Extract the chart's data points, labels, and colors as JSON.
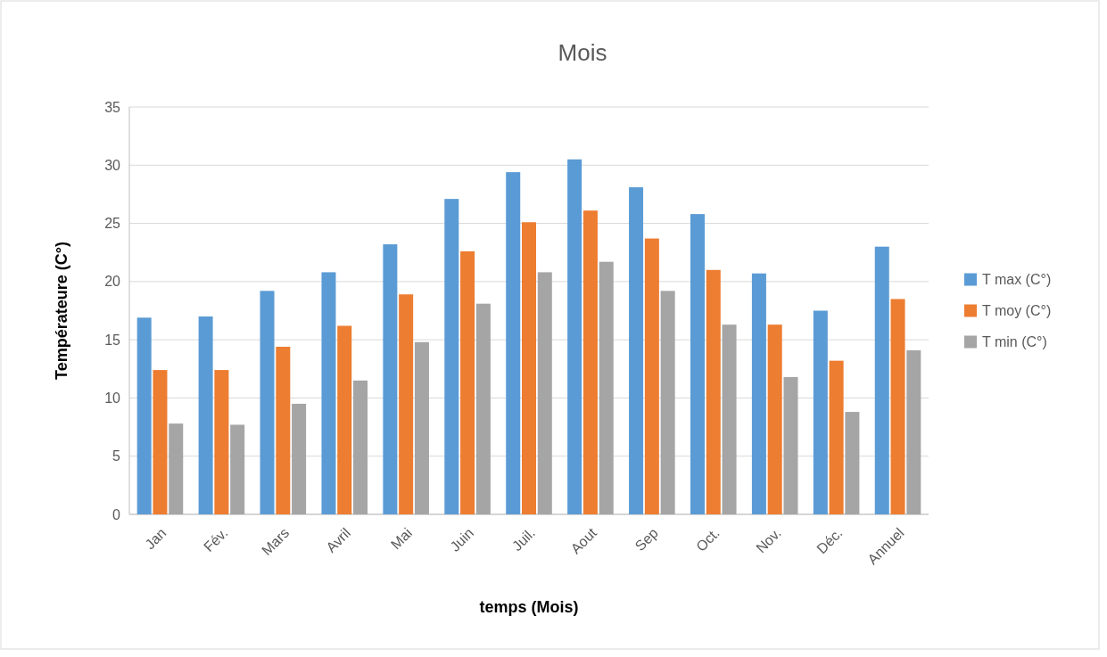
{
  "chart_data": {
    "type": "bar",
    "title": "Mois",
    "xlabel": "temps (Mois)",
    "ylabel": "Températeure (C°)",
    "categories": [
      "Jan",
      "Fév.",
      "Mars",
      "Avril",
      "Mai",
      "Juin",
      "Juil.",
      "Aout",
      "Sep",
      "Oct.",
      "Nov.",
      "Déc.",
      "Annuel"
    ],
    "series": [
      {
        "name": "T max (C°)",
        "color": "#5b9bd5",
        "values": [
          16.9,
          17.0,
          19.2,
          20.8,
          23.2,
          27.1,
          29.4,
          30.5,
          28.1,
          25.8,
          20.7,
          17.5,
          23.0
        ]
      },
      {
        "name": "T moy (C°)",
        "color": "#ed7d31",
        "values": [
          12.4,
          12.4,
          14.4,
          16.2,
          18.9,
          22.6,
          25.1,
          26.1,
          23.7,
          21.0,
          16.3,
          13.2,
          18.5
        ]
      },
      {
        "name": "T min (C°)",
        "color": "#a5a5a5",
        "values": [
          7.8,
          7.7,
          9.5,
          11.5,
          14.8,
          18.1,
          20.8,
          21.7,
          19.2,
          16.3,
          11.8,
          8.8,
          14.1
        ]
      }
    ],
    "ylim": [
      0,
      35
    ],
    "yticks": [
      0,
      5,
      10,
      15,
      20,
      25,
      30,
      35
    ],
    "grid": "y",
    "legend": "right"
  }
}
